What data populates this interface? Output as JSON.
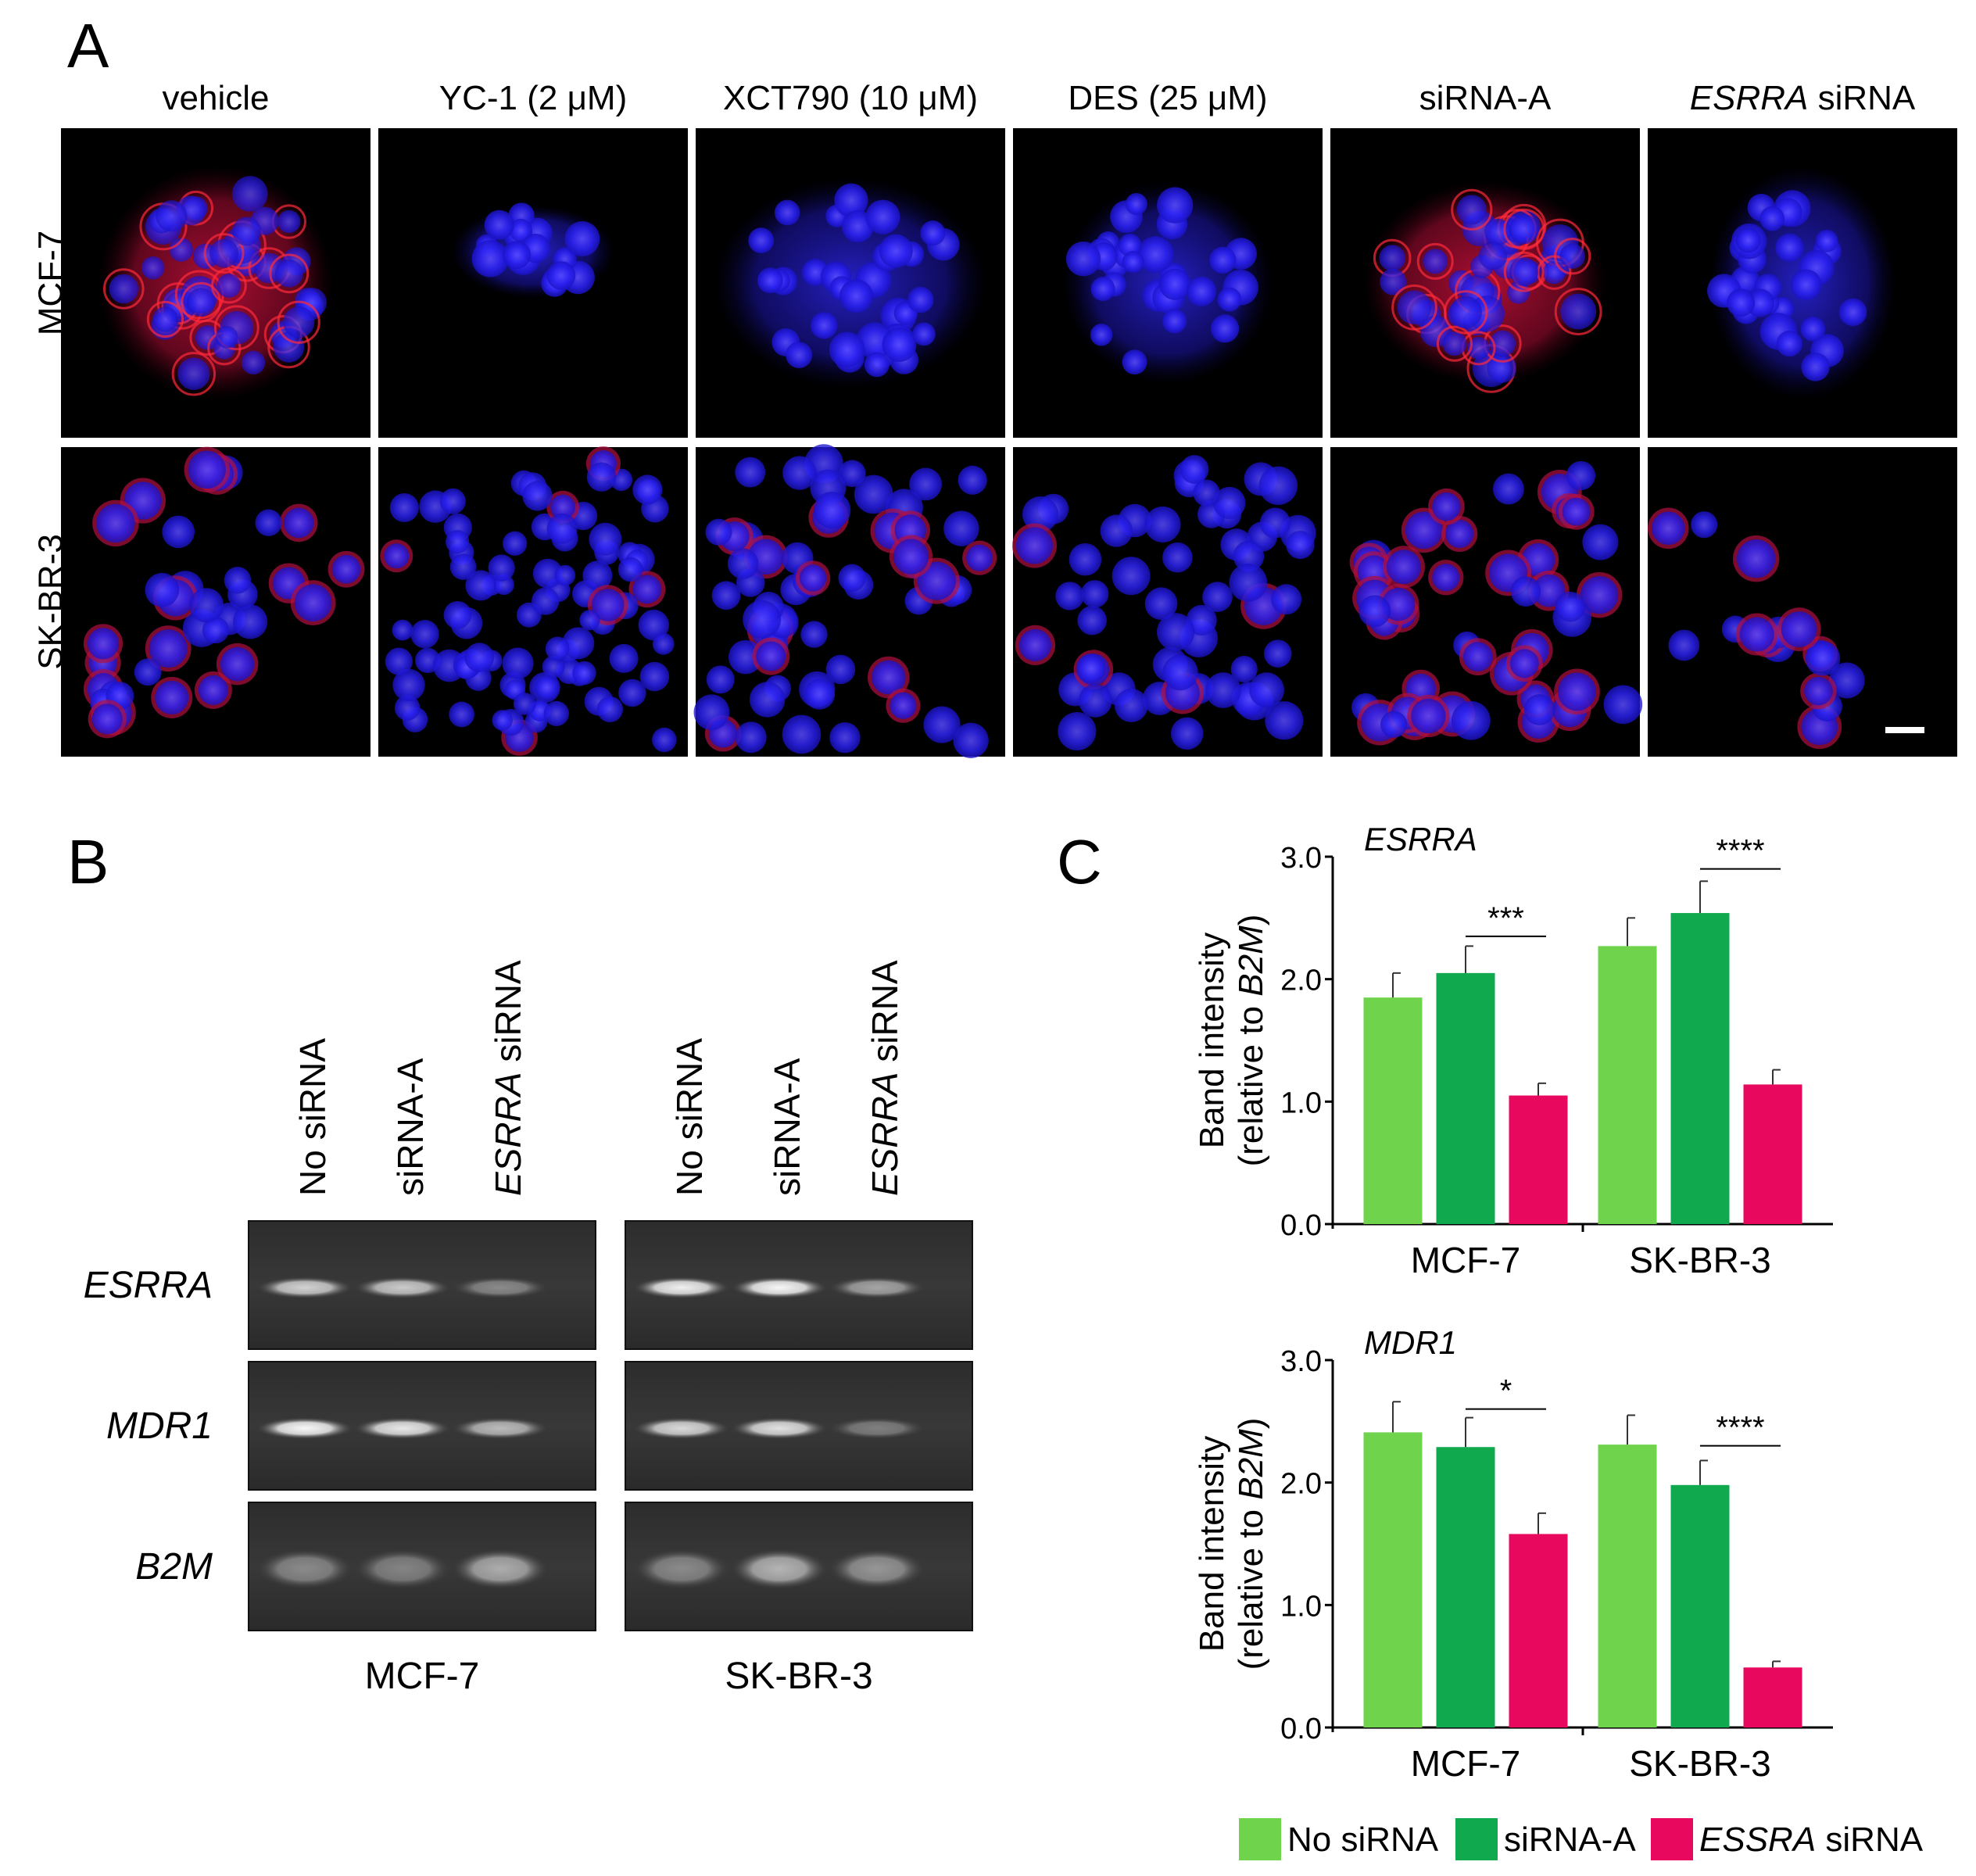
{
  "panel_a": {
    "label": "A",
    "columns": [
      "vehicle",
      "YC-1 (2 μM)",
      "XCT790 (10 μM)",
      "DES (25 μM)",
      "siRNA-A",
      "ESRRA siRNA"
    ],
    "rows": [
      "MCF-7",
      "SK-BR-3"
    ]
  },
  "panel_b": {
    "label": "B",
    "lanes": [
      "No siRNA",
      "siRNA-A",
      "ESRRA siRNA"
    ],
    "genes": [
      "ESRRA",
      "MDR1",
      "B2M"
    ],
    "cell_lines": [
      "MCF-7",
      "SK-BR-3"
    ],
    "band_intensity": {
      "MCF-7": {
        "ESRRA": [
          0.7,
          0.65,
          0.22
        ],
        "MDR1": [
          0.95,
          0.85,
          0.55
        ],
        "B2M": [
          0.22,
          0.18,
          0.45
        ]
      },
      "SK-BR-3": {
        "ESRRA": [
          0.9,
          0.95,
          0.4
        ],
        "MDR1": [
          0.75,
          0.8,
          0.15
        ],
        "B2M": [
          0.22,
          0.5,
          0.3
        ]
      }
    }
  },
  "panel_c": {
    "label": "C",
    "colors": {
      "no_sirna": "#6fd34b",
      "sirna_a": "#11a94d",
      "essra_sirna": "#e8095e"
    },
    "legend": [
      {
        "text": "No siRNA",
        "italic_prefix": ""
      },
      {
        "text": " siRNA",
        "italic_prefix": "ESSRA",
        "is_essra": true
      },
      {
        "text": "siRNA-A",
        "italic_prefix": ""
      }
    ]
  },
  "chart_data": [
    {
      "type": "bar",
      "title": "ESRRA",
      "ylabel_line1": "Band intensity",
      "ylabel_line2_prefix": "(relative to ",
      "ylabel_line2_italic": "B2M",
      "ylabel_line2_suffix": ")",
      "categories": [
        "MCF-7",
        "SK-BR-3"
      ],
      "series": [
        {
          "name": "No siRNA",
          "values": [
            1.85,
            2.27
          ],
          "errors": [
            0.2,
            0.23
          ]
        },
        {
          "name": "siRNA-A",
          "values": [
            2.05,
            2.54
          ],
          "errors": [
            0.22,
            0.26
          ]
        },
        {
          "name": "ESSRA siRNA",
          "values": [
            1.05,
            1.14
          ],
          "errors": [
            0.1,
            0.12
          ]
        }
      ],
      "ylim": [
        0,
        3
      ],
      "yticks": [
        "0.0",
        "1.0",
        "2.0",
        "3.0"
      ],
      "significance": [
        {
          "category": 0,
          "text": "***",
          "y": 2.35
        },
        {
          "category": 1,
          "text": "****",
          "y": 2.9
        }
      ]
    },
    {
      "type": "bar",
      "title": "MDR1",
      "ylabel_line1": "Band intensity",
      "ylabel_line2_prefix": "(relative to ",
      "ylabel_line2_italic": "B2M",
      "ylabel_line2_suffix": ")",
      "categories": [
        "MCF-7",
        "SK-BR-3"
      ],
      "series": [
        {
          "name": "No siRNA",
          "values": [
            2.41,
            2.31
          ],
          "errors": [
            0.25,
            0.24
          ]
        },
        {
          "name": "siRNA-A",
          "values": [
            2.29,
            1.98
          ],
          "errors": [
            0.24,
            0.2
          ]
        },
        {
          "name": "ESSRA siRNA",
          "values": [
            1.58,
            0.49
          ],
          "errors": [
            0.17,
            0.05
          ]
        }
      ],
      "ylim": [
        0,
        3
      ],
      "yticks": [
        "0.0",
        "1.0",
        "2.0",
        "3.0"
      ],
      "significance": [
        {
          "category": 0,
          "text": "*",
          "y": 2.6
        },
        {
          "category": 1,
          "text": "****",
          "y": 2.3
        }
      ]
    }
  ]
}
